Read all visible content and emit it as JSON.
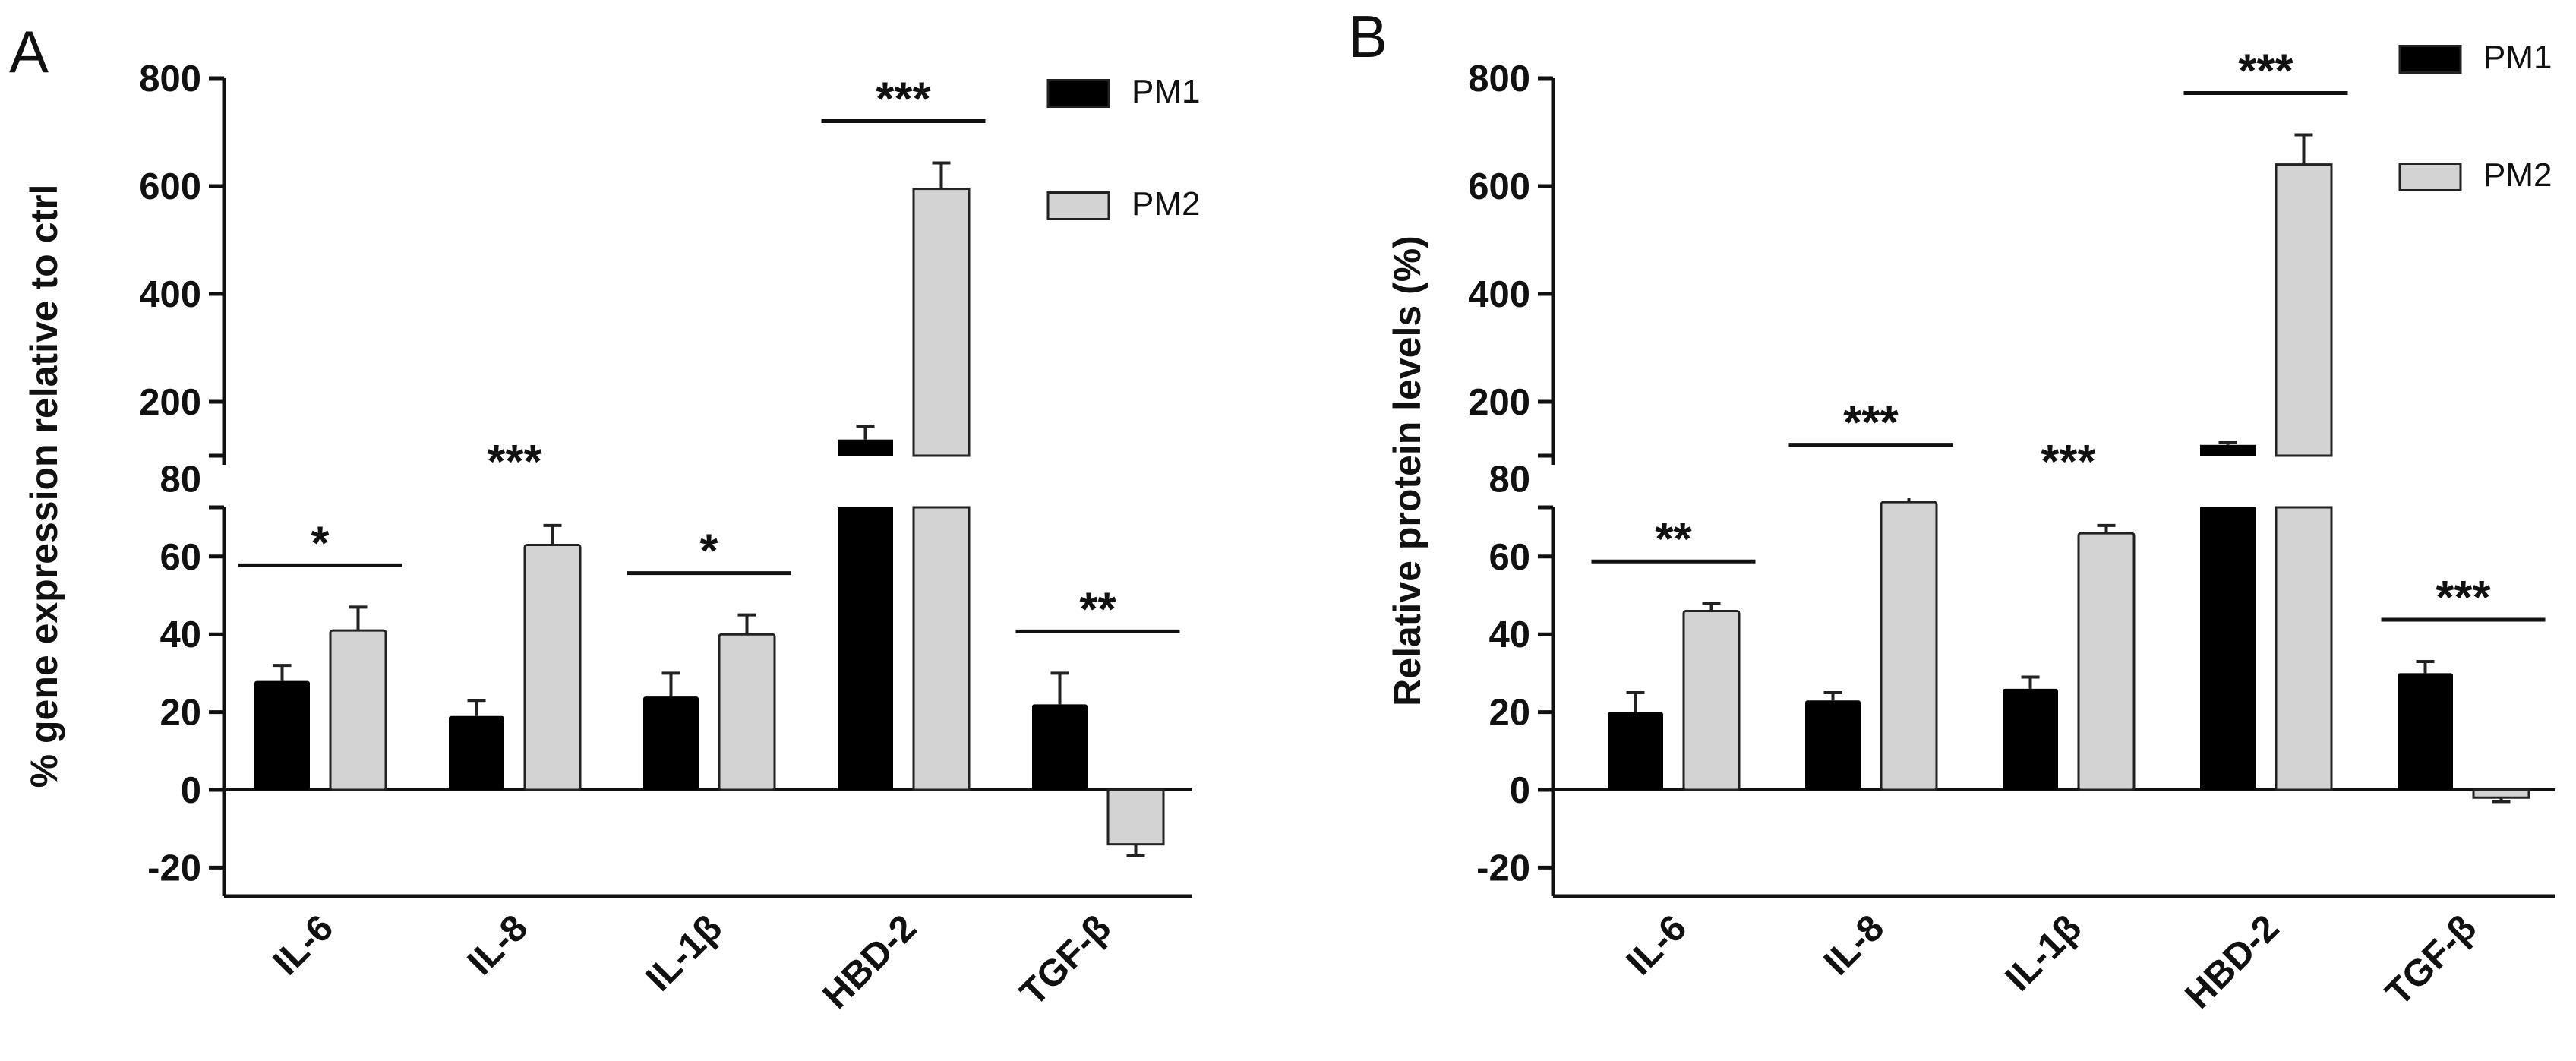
{
  "chart_data": [
    {
      "panel": "A",
      "type": "bar",
      "ylabel": "% gene expression relative to ctrl",
      "categories": [
        "IL-6",
        "IL-8",
        "IL-1β",
        "HBD-2",
        "TGF-β"
      ],
      "series": [
        {
          "name": "PM1",
          "color": "#000000",
          "values": [
            28,
            19,
            24,
            130,
            22
          ],
          "errors": [
            4,
            4,
            6,
            25,
            8
          ]
        },
        {
          "name": "PM2",
          "color": "#d3d3d3",
          "values": [
            41,
            63,
            40,
            595,
            -14
          ],
          "errors": [
            6,
            5,
            5,
            48,
            3
          ]
        }
      ],
      "significance": [
        "*",
        "***",
        "*",
        "***",
        "**"
      ],
      "y_ticks_lower": [
        "-20",
        "0",
        "20",
        "40",
        "60",
        "80"
      ],
      "y_ticks_upper": [
        "200",
        "400",
        "600",
        "800"
      ],
      "axis_break": [
        80,
        100
      ]
    },
    {
      "panel": "B",
      "type": "bar",
      "ylabel": "Relative protein levels (%)",
      "categories": [
        "IL-6",
        "IL-8",
        "IL-1β",
        "HBD-2",
        "TGF-β"
      ],
      "series": [
        {
          "name": "PM1",
          "color": "#000000",
          "values": [
            20,
            23,
            26,
            120,
            30
          ],
          "errors": [
            5,
            2,
            3,
            5,
            3
          ]
        },
        {
          "name": "PM2",
          "color": "#d3d3d3",
          "values": [
            46,
            74,
            66,
            640,
            -2
          ],
          "errors": [
            2,
            4,
            2,
            55,
            1
          ]
        }
      ],
      "significance": [
        "**",
        "***",
        "***",
        "***",
        "***"
      ],
      "y_ticks_lower": [
        "-20",
        "0",
        "20",
        "40",
        "60",
        "80"
      ],
      "y_ticks_upper": [
        "200",
        "400",
        "600",
        "800"
      ],
      "axis_break": [
        80,
        100
      ]
    }
  ]
}
